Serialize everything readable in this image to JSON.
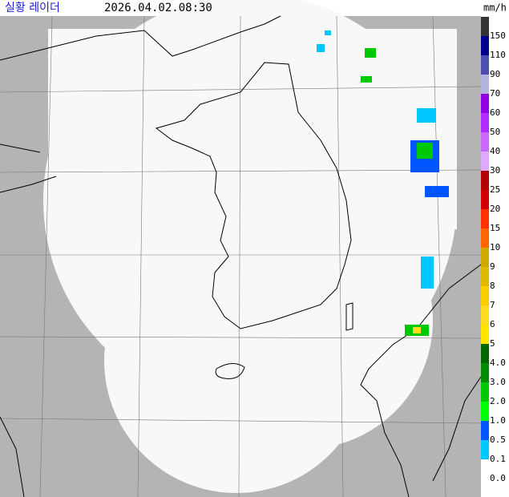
{
  "header": {
    "title": "실황 레이더",
    "time": "2026.04.02.08:30"
  },
  "legend": {
    "unit": "mm/h",
    "items": [
      {
        "label": "150",
        "color": "#333333"
      },
      {
        "label": "110",
        "color": "#00008c"
      },
      {
        "label": "90",
        "color": "#4c4eb1"
      },
      {
        "label": "70",
        "color": "#b3b4de"
      },
      {
        "label": "60",
        "color": "#9300e4"
      },
      {
        "label": "50",
        "color": "#b329ff"
      },
      {
        "label": "40",
        "color": "#c969ff"
      },
      {
        "label": "30",
        "color": "#dfa9ff"
      },
      {
        "label": "25",
        "color": "#b40000"
      },
      {
        "label": "20",
        "color": "#d20000"
      },
      {
        "label": "15",
        "color": "#ff3200"
      },
      {
        "label": "10",
        "color": "#ff6600"
      },
      {
        "label": "9",
        "color": "#ccaa00"
      },
      {
        "label": "8",
        "color": "#e0b900"
      },
      {
        "label": "7",
        "color": "#f9cd00"
      },
      {
        "label": "6",
        "color": "#ffdc1f"
      },
      {
        "label": "5",
        "color": "#ffe600"
      },
      {
        "label": "4.0",
        "color": "#006600"
      },
      {
        "label": "3.0",
        "color": "#008c00"
      },
      {
        "label": "2.0",
        "color": "#00c800"
      },
      {
        "label": "1.0",
        "color": "#00ff00"
      },
      {
        "label": "0.5",
        "color": "#0055ff"
      },
      {
        "label": "0.1",
        "color": "#00c8ff"
      },
      {
        "label": "0.0",
        "color": "#ffffff"
      }
    ]
  }
}
